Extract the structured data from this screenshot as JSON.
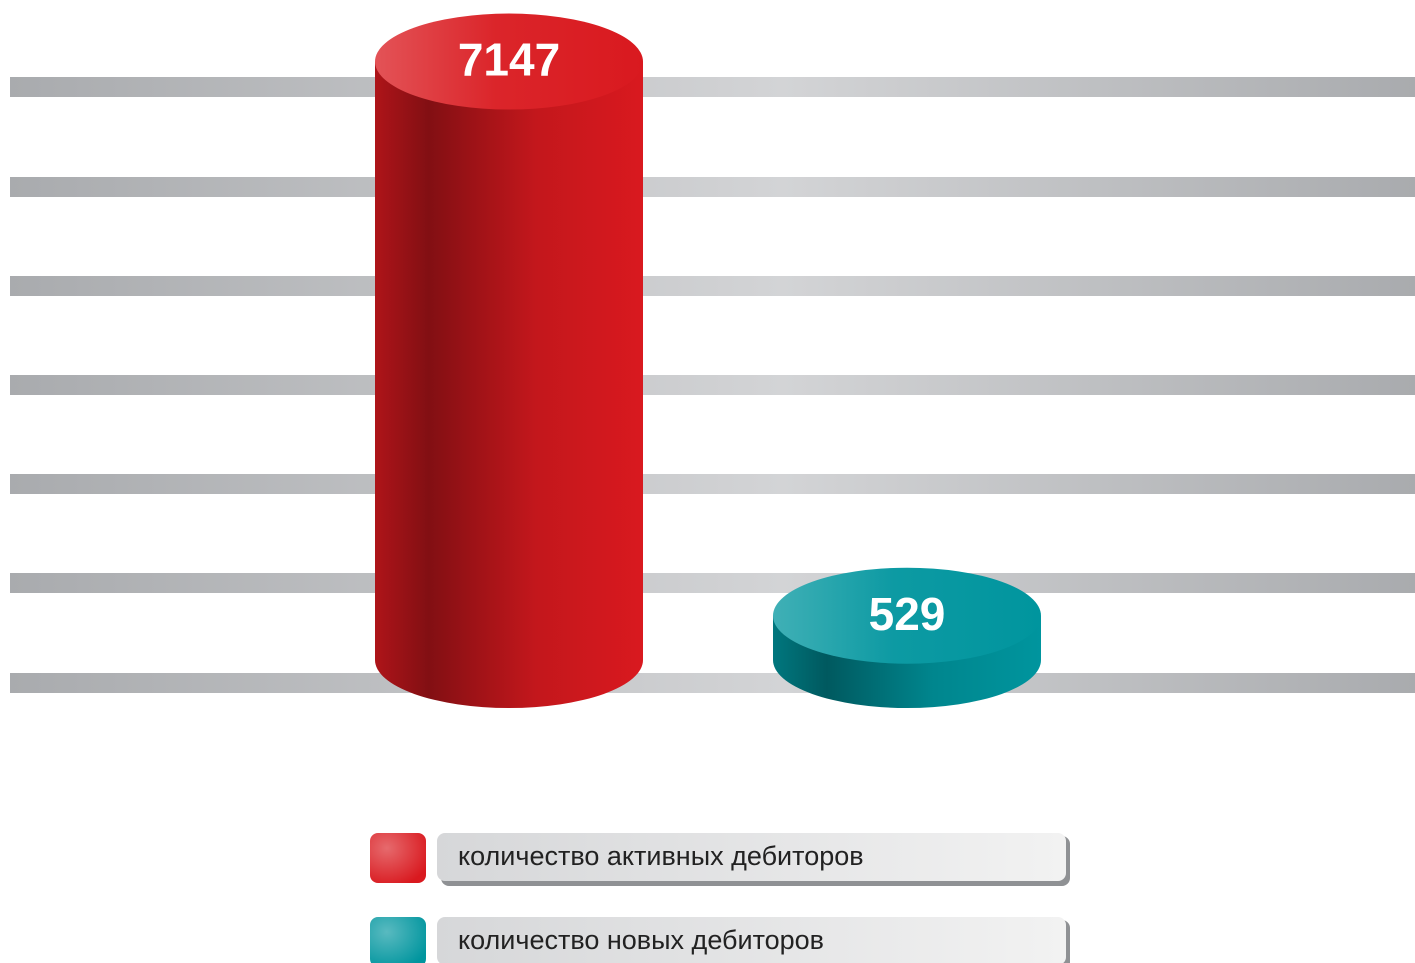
{
  "chart_data": {
    "type": "bar",
    "series": [
      {
        "name": "количество активных дебиторов",
        "color": "#d9191f",
        "values": [
          7147
        ]
      },
      {
        "name": "количество новых дебиторов",
        "color": "#00959e",
        "values": [
          529
        ]
      }
    ],
    "ylim": [
      0,
      7500
    ]
  }
}
